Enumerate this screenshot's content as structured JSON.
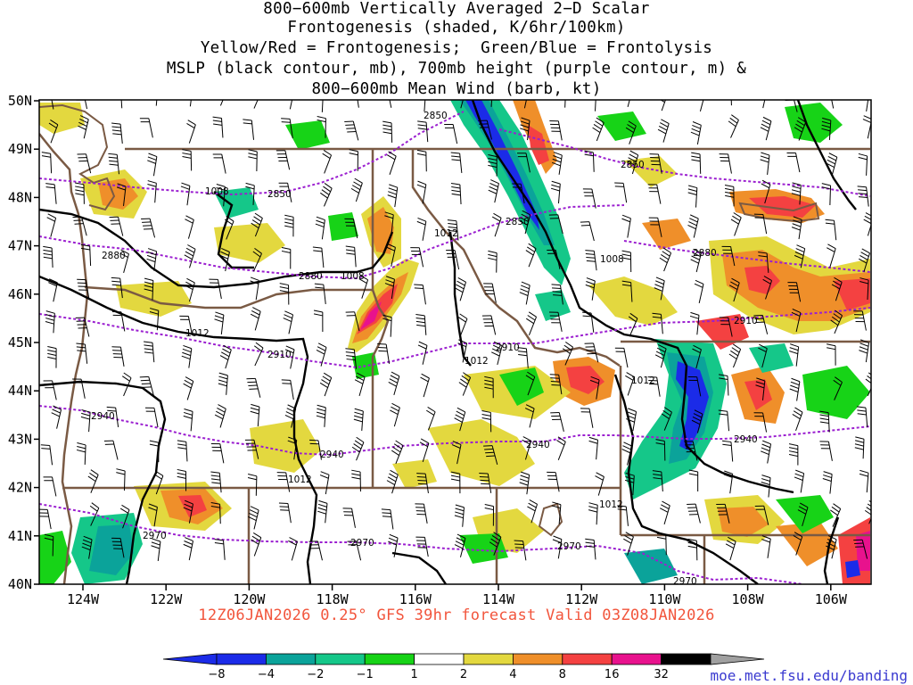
{
  "title": {
    "lines": [
      "800−600mb Vertically Averaged 2−D Scalar",
      "Frontogenesis (shaded, K/6hr/100km)",
      "Yellow/Red = Frontogenesis;  Green/Blue = Frontolysis",
      "MSLP (black contour, mb), 700mb height (purple contour, m) &",
      "800−600mb Mean Wind (barb, kt)"
    ]
  },
  "axes": {
    "lat_labels": [
      "50N",
      "49N",
      "48N",
      "47N",
      "46N",
      "45N",
      "44N",
      "43N",
      "42N",
      "41N",
      "40N"
    ],
    "lon_labels": [
      "124W",
      "122W",
      "120W",
      "118W",
      "116W",
      "114W",
      "112W",
      "110W",
      "108W",
      "106W"
    ]
  },
  "valid_line": "12Z06JAN2026 0.25° GFS 39hr forecast Valid 03Z08JAN2026",
  "colorbar": {
    "tick_labels": [
      "−8",
      "−4",
      "−2",
      "−1",
      "1",
      "2",
      "4",
      "8",
      "16",
      "32"
    ],
    "colors": [
      "#1b2be8",
      "#0ba39a",
      "#15c789",
      "#17d317",
      "#ffffff",
      "#e3d83f",
      "#ef8f2a",
      "#f44141",
      "#e8128d",
      "#000000"
    ],
    "cap_low": "#1b2be8",
    "cap_high": "#a0a0a0"
  },
  "source": "moe.met.fsu.edu/banding",
  "contours": {
    "mslp_labels": [
      "1008",
      "1008",
      "1012",
      "1008",
      "1012",
      "1012",
      "1012",
      "1012",
      "1012"
    ],
    "height_labels": [
      "2850",
      "2850",
      "2850",
      "2850",
      "2880",
      "2880",
      "2880",
      "2910",
      "2910",
      "2910",
      "2940",
      "2940",
      "2940",
      "2940",
      "2970",
      "2970",
      "2970",
      "2970"
    ]
  },
  "style": {
    "state_line": "#7a5a44",
    "mslp_contour": "#000000",
    "height_contour": "#9b1fd0",
    "barb": "#000000"
  }
}
